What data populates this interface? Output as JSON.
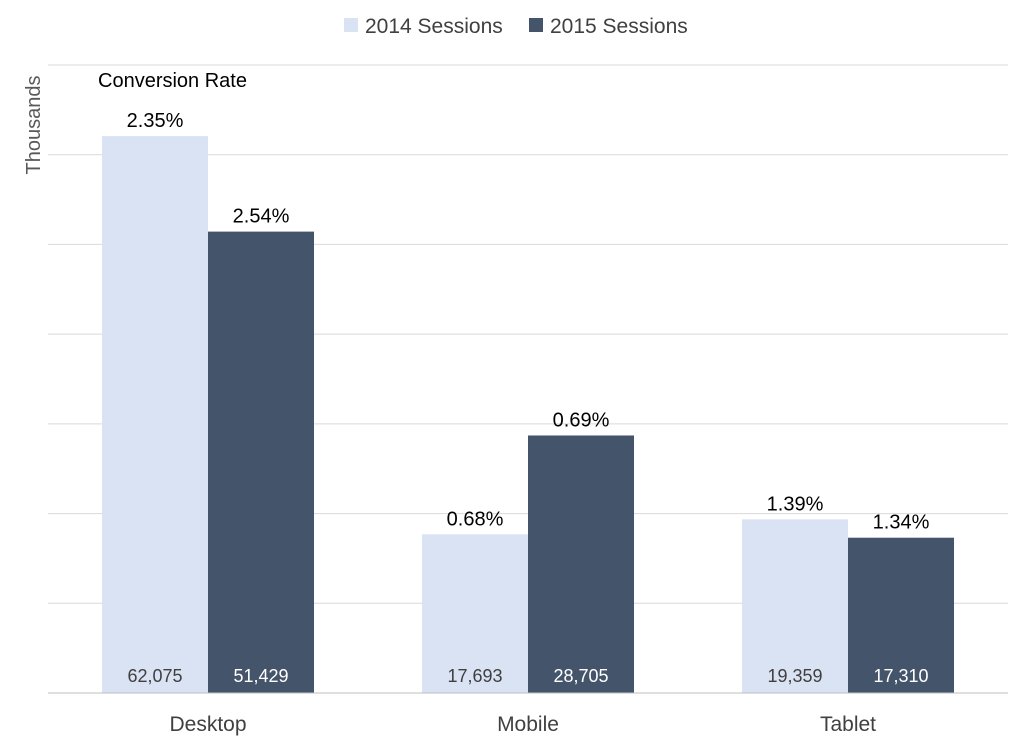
{
  "chart_data": {
    "type": "bar",
    "annotation": "Conversion Rate",
    "ylabel": "Thousands",
    "xlabel": "",
    "ylim": [
      0,
      70
    ],
    "grid": true,
    "legend_position": "top-center",
    "categories": [
      "Desktop",
      "Mobile",
      "Tablet"
    ],
    "series": [
      {
        "name": "2014 Sessions",
        "color": "#dae3f3",
        "label_color": "#404040",
        "values": [
          62075,
          17693,
          19359
        ],
        "value_labels": [
          "62,075",
          "17,693",
          "19,359"
        ],
        "rate_labels": [
          "2.35%",
          "0.68%",
          "1.39%"
        ]
      },
      {
        "name": "2015 Sessions",
        "color": "#44546a",
        "label_color": "#ffffff",
        "values": [
          51429,
          28705,
          17310
        ],
        "value_labels": [
          "51,429",
          "28,705",
          "17,310"
        ],
        "rate_labels": [
          "2.54%",
          "0.69%",
          "1.34%"
        ]
      }
    ]
  }
}
